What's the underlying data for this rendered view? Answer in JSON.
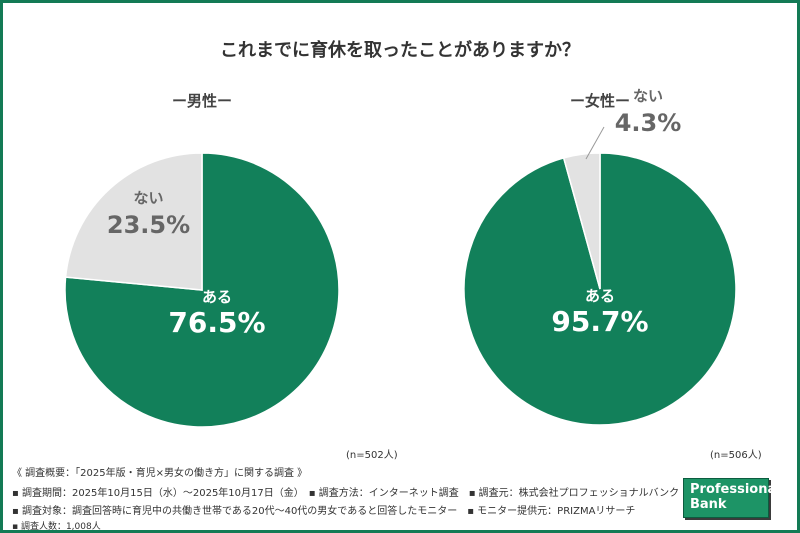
{
  "colors": {
    "green": "#12805a",
    "grey": "#e2e2e2",
    "frame": "#137a55"
  },
  "chart_data": [
    {
      "type": "pie",
      "title": "これまでに育休を取ったことがありますか？",
      "subtitle": "ー男性ー",
      "note": "(n=502人)",
      "slices": [
        {
          "label": "ある",
          "value": 76.5,
          "display": "76.5%",
          "color": "#12805a"
        },
        {
          "label": "ない",
          "value": 23.5,
          "display": "23.5%",
          "color": "#e2e2e2"
        }
      ]
    },
    {
      "type": "pie",
      "subtitle": "ー女性ー",
      "note": "(n=506人)",
      "slices": [
        {
          "label": "ある",
          "value": 95.7,
          "display": "95.7%",
          "color": "#12805a"
        },
        {
          "label": "ない",
          "value": 4.3,
          "display": "4.3%",
          "color": "#e2e2e2"
        }
      ]
    }
  ],
  "footer": {
    "line1": "《 調査概要：「2025年版・育児×男女の働き方」に関する調査 》",
    "line2": "▪ 調査期間：2025年10月15日（水）～2025年10月17日（金）　▪ 調査方法：インターネット調査　▪ 調査元：株式会社プロフェッショナルバンク",
    "line3": "▪ 調査対象：調査回答時に育児中の共働き世帯である20代～40代の男女であると回答したモニター　▪ モニター提供元：PRIZMAリサーチ",
    "line4": "▪ 調査人数：1,008人"
  },
  "logo": {
    "text1": "Professional",
    "text2": "Bank"
  }
}
